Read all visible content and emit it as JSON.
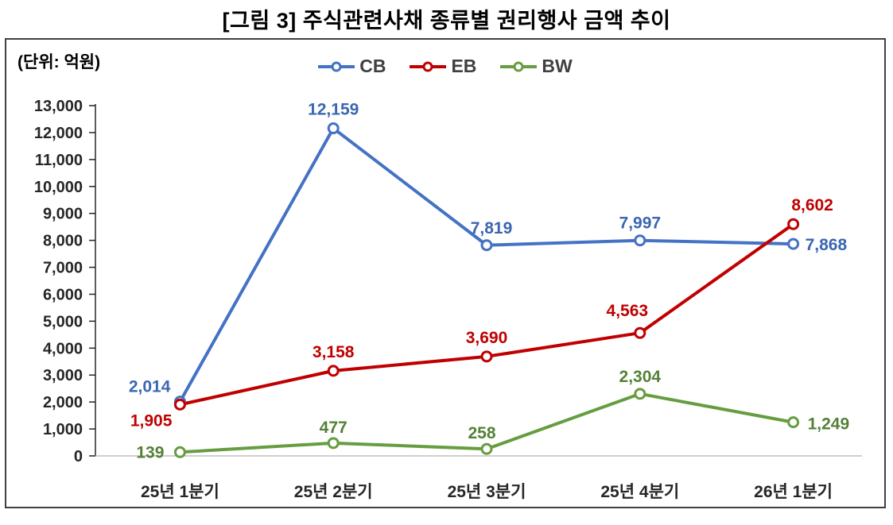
{
  "title": "[그림 3] 주식관련사채 종류별 권리행사 금액 추이",
  "unit_label": "(단위: 억원)",
  "chart_data": {
    "type": "line",
    "title": "[그림 3] 주식관련사채 종류별 권리행사 금액 추이",
    "unit": "(단위: 억원)",
    "categories": [
      "25년 1분기",
      "25년 2분기",
      "25년 3분기",
      "25년 4분기",
      "26년 1분기"
    ],
    "series": [
      {
        "name": "CB",
        "values": [
          2014,
          12159,
          7819,
          7997,
          7868
        ],
        "labels": [
          "2,014",
          "12,159",
          "7,819",
          "7,997",
          "7,868"
        ],
        "color": "#4472C4",
        "label_color": "#3A66B0"
      },
      {
        "name": "EB",
        "values": [
          1905,
          3158,
          3690,
          4563,
          8602
        ],
        "labels": [
          "1,905",
          "3,158",
          "3,690",
          "4,563",
          "8,602"
        ],
        "color": "#C00000",
        "label_color": "#C00000"
      },
      {
        "name": "BW",
        "values": [
          139,
          477,
          258,
          2304,
          1249
        ],
        "labels": [
          "139",
          "477",
          "258",
          "2,304",
          "1,249"
        ],
        "color": "#669D41",
        "label_color": "#538135"
      }
    ],
    "ylim": [
      0,
      13000
    ],
    "ytick_step": 1000,
    "ytick_labels": [
      "0",
      "1,000",
      "2,000",
      "3,000",
      "4,000",
      "5,000",
      "6,000",
      "7,000",
      "8,000",
      "9,000",
      "10,000",
      "11,000",
      "12,000",
      "13,000"
    ],
    "legend_position": "top",
    "grid": false,
    "marker": "open-circle",
    "axis_color": "#262626",
    "baseline_color": "#BFBFBF"
  }
}
